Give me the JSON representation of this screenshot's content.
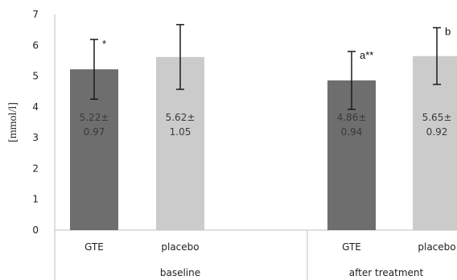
{
  "chart_data": {
    "type": "bar",
    "ylabel": "[mmol/l]",
    "ylim": [
      0,
      7
    ],
    "yticks": [
      "0",
      "1",
      "2",
      "3",
      "4",
      "5",
      "6",
      "7"
    ],
    "grid": false,
    "groups": [
      {
        "label": "baseline",
        "bars": [
          {
            "category": "GTE",
            "value": 5.22,
            "err": 0.97,
            "label_line1": "5.22±",
            "label_line2": "0.97",
            "annotation": "*",
            "color": "#6e6e6e"
          },
          {
            "category": "placebo",
            "value": 5.62,
            "err": 1.05,
            "label_line1": "5.62±",
            "label_line2": "1.05",
            "annotation": "",
            "color": "#cbcbcb"
          }
        ]
      },
      {
        "label": "after treatment",
        "bars": [
          {
            "category": "GTE",
            "value": 4.86,
            "err": 0.94,
            "label_line1": "4.86±",
            "label_line2": "0.94",
            "annotation": "a**",
            "color": "#6e6e6e"
          },
          {
            "category": "placebo",
            "value": 5.65,
            "err": 0.92,
            "label_line1": "5.65±",
            "label_line2": "0.92",
            "annotation": "b",
            "color": "#cbcbcb"
          }
        ]
      }
    ]
  }
}
